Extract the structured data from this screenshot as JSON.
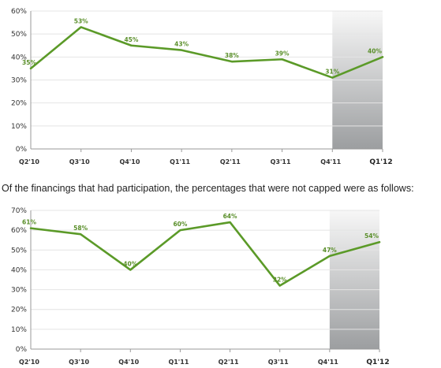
{
  "caption": "Of the financings that had participation, the percentages that were not capped were as follows:",
  "colors": {
    "line": "#5b9a28",
    "label": "#5a8f2a",
    "highlight_top": "#f7f7f7",
    "highlight_bottom": "#9c9ea0"
  },
  "chart_data": [
    {
      "type": "line",
      "categories": [
        "Q2'10",
        "Q3'10",
        "Q4'10",
        "Q1'11",
        "Q2'11",
        "Q3'11",
        "Q4'11",
        "Q1'12"
      ],
      "series": [
        {
          "values": [
            35,
            53,
            45,
            43,
            38,
            39,
            31,
            40
          ]
        }
      ],
      "data_labels": [
        "35%",
        "53%",
        "45%",
        "43%",
        "38%",
        "39%",
        "31%",
        "40%"
      ],
      "y_ticks": [
        "0%",
        "10%",
        "20%",
        "30%",
        "40%",
        "50%",
        "60%"
      ],
      "ylim": [
        0,
        60
      ],
      "grid": true,
      "highlighted_category": "Q1'12"
    },
    {
      "type": "line",
      "categories": [
        "Q2'10",
        "Q3'10",
        "Q4'10",
        "Q1'11",
        "Q2'11",
        "Q3'11",
        "Q4'11",
        "Q1'12"
      ],
      "series": [
        {
          "values": [
            61,
            58,
            40,
            60,
            64,
            32,
            47,
            54
          ]
        }
      ],
      "data_labels": [
        "61%",
        "58%",
        "40%",
        "60%",
        "64%",
        "32%",
        "47%",
        "54%"
      ],
      "y_ticks": [
        "0%",
        "10%",
        "20%",
        "30%",
        "40%",
        "50%",
        "60%",
        "70%"
      ],
      "ylim": [
        0,
        70
      ],
      "grid": true,
      "highlighted_category": "Q1'12"
    }
  ]
}
